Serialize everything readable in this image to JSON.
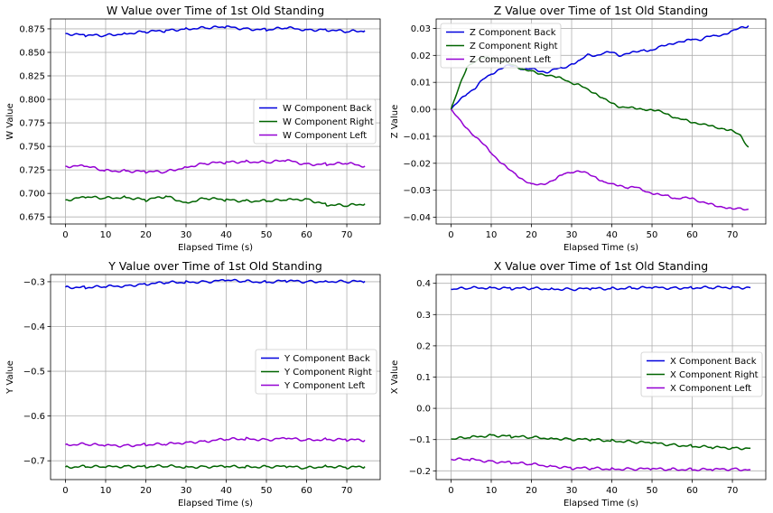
{
  "chart_data": [
    {
      "type": "line",
      "title": "W Value over Time of 1st Old Standing",
      "xlabel": "Elapsed Time (s)",
      "ylabel": "W Value",
      "xlim": [
        -3.7,
        78.3
      ],
      "ylim": [
        0.6675,
        0.8855
      ],
      "xticks": [
        0,
        10,
        20,
        30,
        40,
        50,
        60,
        70
      ],
      "yticks": [
        0.675,
        0.7,
        0.725,
        0.75,
        0.775,
        0.8,
        0.825,
        0.85,
        0.875
      ],
      "ytick_labels": [
        "0.675",
        "0.700",
        "0.725",
        "0.750",
        "0.775",
        "0.800",
        "0.825",
        "0.850",
        "0.875"
      ],
      "grid": true,
      "legend_position": "center-right",
      "x": [
        0,
        5,
        10,
        15,
        20,
        25,
        30,
        35,
        40,
        45,
        50,
        55,
        60,
        65,
        70,
        74.5
      ],
      "series": [
        {
          "name": "W Component Back",
          "color": "#0000dd",
          "values": [
            0.87,
            0.868,
            0.868,
            0.87,
            0.872,
            0.873,
            0.875,
            0.876,
            0.877,
            0.875,
            0.874,
            0.876,
            0.874,
            0.874,
            0.872,
            0.873
          ]
        },
        {
          "name": "W Component Right",
          "color": "#006400",
          "values": [
            0.693,
            0.696,
            0.695,
            0.696,
            0.693,
            0.697,
            0.69,
            0.695,
            0.693,
            0.692,
            0.692,
            0.693,
            0.694,
            0.688,
            0.687,
            0.689
          ]
        },
        {
          "name": "W Component Left",
          "color": "#9400d3",
          "values": [
            0.729,
            0.729,
            0.724,
            0.724,
            0.723,
            0.723,
            0.728,
            0.732,
            0.733,
            0.734,
            0.733,
            0.735,
            0.731,
            0.731,
            0.732,
            0.729
          ]
        }
      ]
    },
    {
      "type": "line",
      "title": "Z Value over Time of 1st Old Standing",
      "xlabel": "Elapsed Time (s)",
      "ylabel": "Z Value",
      "xlim": [
        -3.7,
        78.3
      ],
      "ylim": [
        -0.0425,
        0.0335
      ],
      "xticks": [
        0,
        10,
        20,
        30,
        40,
        50,
        60,
        70
      ],
      "yticks": [
        -0.04,
        -0.03,
        -0.02,
        -0.01,
        0.0,
        0.01,
        0.02,
        0.03
      ],
      "ytick_labels": [
        "−0.04",
        "−0.03",
        "−0.02",
        "−0.01",
        "0.00",
        "0.01",
        "0.02",
        "0.03"
      ],
      "grid": true,
      "legend_position": "top-left",
      "x": [
        0,
        2,
        4,
        6,
        8,
        10,
        12,
        14,
        16,
        18,
        20,
        22,
        24,
        26,
        28,
        30,
        32,
        34,
        36,
        38,
        40,
        42,
        44,
        46,
        48,
        50,
        52,
        54,
        56,
        58,
        60,
        62,
        64,
        66,
        68,
        70,
        72,
        74
      ],
      "series": [
        {
          "name": "Z Component Back",
          "color": "#0000dd",
          "values": [
            0.0,
            0.003,
            0.006,
            0.008,
            0.011,
            0.013,
            0.015,
            0.016,
            0.016,
            0.015,
            0.015,
            0.014,
            0.014,
            0.015,
            0.015,
            0.017,
            0.018,
            0.02,
            0.02,
            0.021,
            0.021,
            0.02,
            0.021,
            0.021,
            0.022,
            0.022,
            0.023,
            0.024,
            0.025,
            0.025,
            0.026,
            0.026,
            0.027,
            0.027,
            0.028,
            0.029,
            0.03,
            0.031
          ]
        },
        {
          "name": "Z Component Right",
          "color": "#006400",
          "values": [
            0.0,
            0.008,
            0.016,
            0.018,
            0.019,
            0.019,
            0.018,
            0.017,
            0.016,
            0.015,
            0.014,
            0.013,
            0.013,
            0.012,
            0.011,
            0.01,
            0.009,
            0.007,
            0.006,
            0.004,
            0.002,
            0.001,
            0.001,
            0.0,
            0.0,
            0.0,
            -0.001,
            -0.002,
            -0.003,
            -0.004,
            -0.005,
            -0.005,
            -0.006,
            -0.007,
            -0.007,
            -0.008,
            -0.01,
            -0.014
          ]
        },
        {
          "name": "Z Component Left",
          "color": "#9400d3",
          "values": [
            0.0,
            -0.004,
            -0.007,
            -0.01,
            -0.013,
            -0.016,
            -0.019,
            -0.022,
            -0.024,
            -0.026,
            -0.028,
            -0.028,
            -0.027,
            -0.026,
            -0.024,
            -0.023,
            -0.023,
            -0.024,
            -0.025,
            -0.027,
            -0.028,
            -0.028,
            -0.029,
            -0.029,
            -0.03,
            -0.031,
            -0.032,
            -0.032,
            -0.033,
            -0.033,
            -0.033,
            -0.034,
            -0.035,
            -0.036,
            -0.036,
            -0.037,
            -0.037,
            -0.037
          ]
        }
      ]
    },
    {
      "type": "line",
      "title": "Y Value over Time of 1st Old Standing",
      "xlabel": "Elapsed Time (s)",
      "ylabel": "Y Value",
      "xlim": [
        -3.7,
        78.3
      ],
      "ylim": [
        -0.742,
        -0.284
      ],
      "xticks": [
        0,
        10,
        20,
        30,
        40,
        50,
        60,
        70
      ],
      "yticks": [
        -0.7,
        -0.6,
        -0.5,
        -0.4,
        -0.3
      ],
      "ytick_labels": [
        "−0.7",
        "−0.6",
        "−0.5",
        "−0.4",
        "−0.3"
      ],
      "grid": true,
      "legend_position": "center-right",
      "x": [
        0,
        5,
        10,
        15,
        20,
        25,
        30,
        35,
        40,
        45,
        50,
        55,
        60,
        65,
        70,
        74.5
      ],
      "series": [
        {
          "name": "Y Component Back",
          "color": "#0000dd",
          "values": [
            -0.312,
            -0.313,
            -0.311,
            -0.309,
            -0.305,
            -0.302,
            -0.301,
            -0.3,
            -0.297,
            -0.299,
            -0.301,
            -0.298,
            -0.3,
            -0.299,
            -0.3,
            -0.299
          ]
        },
        {
          "name": "Y Component Right",
          "color": "#006400",
          "values": [
            -0.714,
            -0.713,
            -0.714,
            -0.712,
            -0.713,
            -0.712,
            -0.714,
            -0.713,
            -0.713,
            -0.714,
            -0.713,
            -0.713,
            -0.716,
            -0.712,
            -0.715,
            -0.713
          ]
        },
        {
          "name": "Y Component Left",
          "color": "#9400d3",
          "values": [
            -0.664,
            -0.663,
            -0.666,
            -0.666,
            -0.664,
            -0.663,
            -0.659,
            -0.656,
            -0.652,
            -0.651,
            -0.653,
            -0.65,
            -0.654,
            -0.652,
            -0.653,
            -0.654
          ]
        }
      ]
    },
    {
      "type": "line",
      "title": "X Value over Time of 1st Old Standing",
      "xlabel": "Elapsed Time (s)",
      "ylabel": "X Value",
      "xlim": [
        -3.7,
        78.3
      ],
      "ylim": [
        -0.228,
        0.428
      ],
      "xticks": [
        0,
        10,
        20,
        30,
        40,
        50,
        60,
        70
      ],
      "yticks": [
        -0.2,
        -0.1,
        0.0,
        0.1,
        0.2,
        0.3,
        0.4
      ],
      "ytick_labels": [
        "−0.2",
        "−0.1",
        "0.0",
        "0.1",
        "0.2",
        "0.3",
        "0.4"
      ],
      "grid": true,
      "legend_position": "center-right",
      "x": [
        0,
        5,
        10,
        15,
        20,
        25,
        30,
        35,
        40,
        45,
        50,
        55,
        60,
        65,
        70,
        74.5
      ],
      "series": [
        {
          "name": "X Component Back",
          "color": "#0000dd",
          "values": [
            0.381,
            0.385,
            0.386,
            0.384,
            0.384,
            0.382,
            0.381,
            0.383,
            0.383,
            0.385,
            0.386,
            0.385,
            0.386,
            0.386,
            0.387,
            0.386
          ]
        },
        {
          "name": "X Component Right",
          "color": "#006400",
          "values": [
            -0.098,
            -0.093,
            -0.086,
            -0.09,
            -0.093,
            -0.096,
            -0.099,
            -0.1,
            -0.104,
            -0.107,
            -0.111,
            -0.117,
            -0.121,
            -0.125,
            -0.127,
            -0.128
          ]
        },
        {
          "name": "X Component Left",
          "color": "#9400d3",
          "values": [
            -0.163,
            -0.164,
            -0.17,
            -0.174,
            -0.179,
            -0.185,
            -0.191,
            -0.192,
            -0.194,
            -0.194,
            -0.194,
            -0.195,
            -0.196,
            -0.196,
            -0.194,
            -0.197
          ]
        }
      ]
    }
  ]
}
